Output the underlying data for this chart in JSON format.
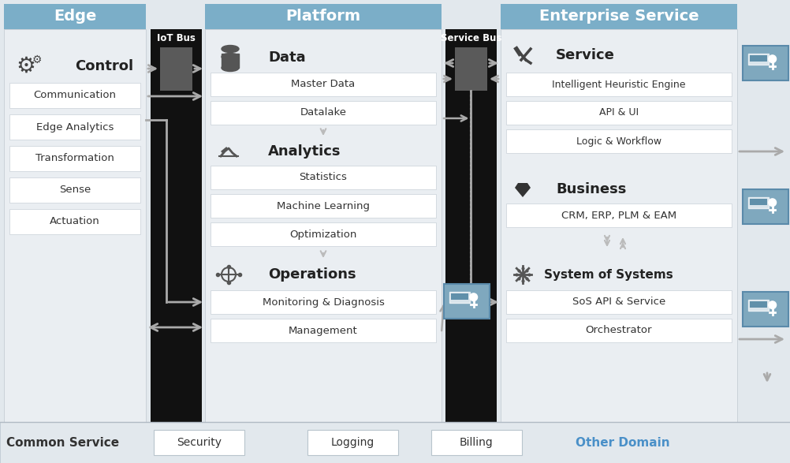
{
  "title_edge": "Edge",
  "title_platform": "Platform",
  "title_enterprise": "Enterprise Service",
  "header_bg": "#7baec8",
  "header_text": "#ffffff",
  "main_bg": "#e2e8ed",
  "panel_bg": "#eaeef2",
  "box_bg": "#ffffff",
  "black_bg": "#111111",
  "bus_box_color": "#5a5a5a",
  "arrow_color": "#aaaaaa",
  "text_dark": "#333333",
  "icon_color": "#444444",
  "section_bold_color": "#222222",
  "other_domain_color": "#4a90c8",
  "teal_icon_bg": "#7fa8be",
  "teal_icon_border": "#5a8aaa",
  "common_service_label": "Common Service",
  "other_domain_label": "Other Domain",
  "bottom_boxes": [
    "Security",
    "Logging",
    "Billing"
  ],
  "edge_items": [
    "Communication",
    "Edge Analytics",
    "Transformation",
    "Sense",
    "Actuation"
  ],
  "platform_data_items": [
    "Master Data",
    "Datalake"
  ],
  "platform_analytics_items": [
    "Statistics",
    "Machine Learning",
    "Optimization"
  ],
  "platform_ops_items": [
    "Monitoring & Diagnosis",
    "Management"
  ],
  "ent_service_items": [
    "Intelligent Heuristic Engine",
    "API & UI",
    "Logic & Workflow"
  ],
  "ent_business_items": [
    "CRM, ERP, PLM & EAM"
  ],
  "ent_sos_items": [
    "SoS API & Service",
    "Orchestrator"
  ]
}
